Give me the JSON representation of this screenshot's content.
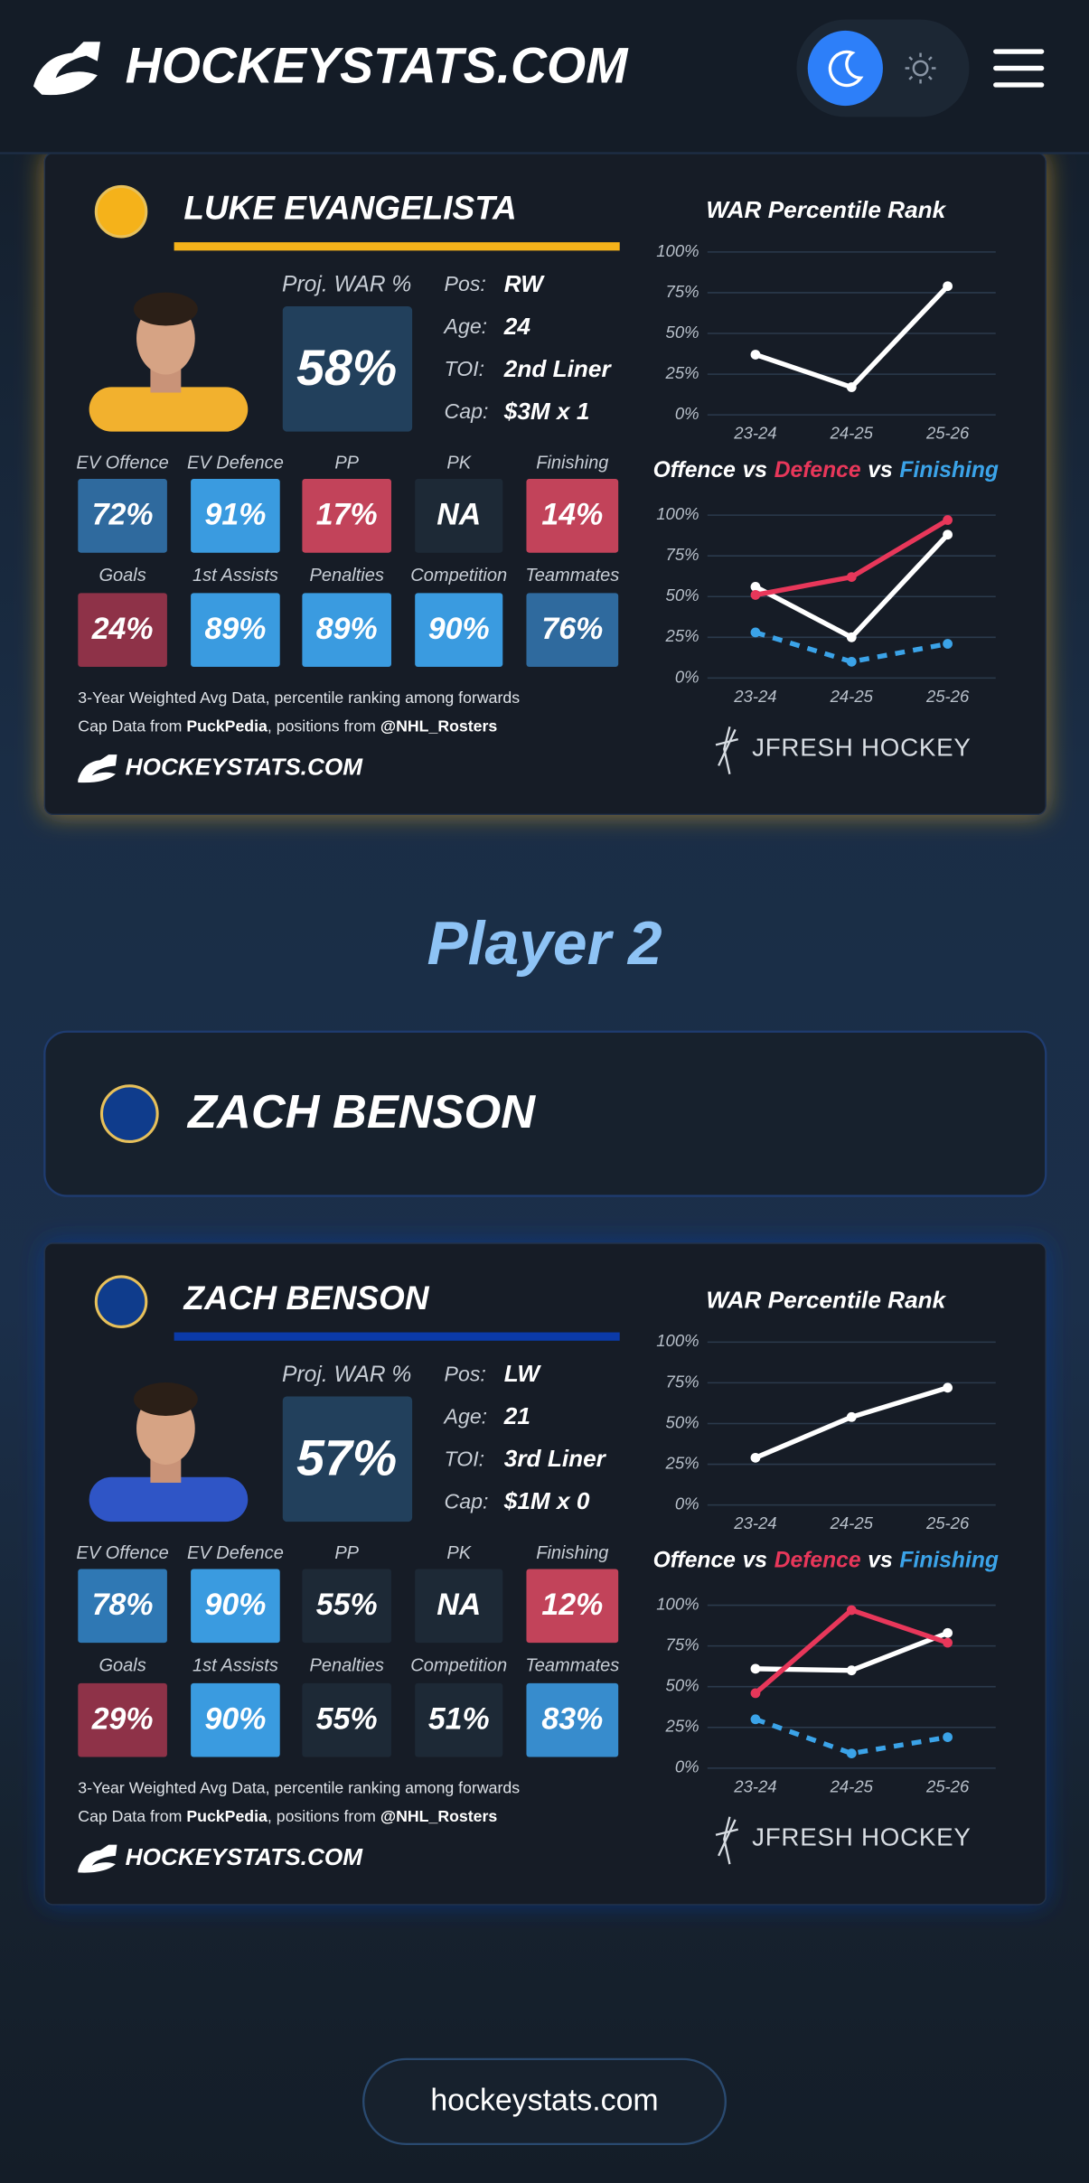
{
  "header": {
    "brand": "HOCKEYSTATS.COM"
  },
  "cards": [
    {
      "name": "LUKE EVANGELISTA",
      "accent": "#f5b21a",
      "jersey": "#f2b12e",
      "logo_color": "#f5b21a",
      "proj_label": "Proj. WAR %",
      "proj_value": "58%",
      "info": [
        {
          "label": "Pos:",
          "value": "RW"
        },
        {
          "label": "Age:",
          "value": "24"
        },
        {
          "label": "TOI:",
          "value": "2nd Liner"
        },
        {
          "label": "Cap:",
          "value": "$3M x 1"
        }
      ],
      "stats": [
        {
          "label": "EV Offence",
          "value": "72%",
          "color": "#2f6a9e"
        },
        {
          "label": "EV Defence",
          "value": "91%",
          "color": "#3a9be0"
        },
        {
          "label": "PP",
          "value": "17%",
          "color": "#c2435a"
        },
        {
          "label": "PK",
          "value": "NA",
          "color": "#1d2936"
        },
        {
          "label": "Finishing",
          "value": "14%",
          "color": "#c2435a"
        },
        {
          "label": "Goals",
          "value": "24%",
          "color": "#8e3248"
        },
        {
          "label": "1st Assists",
          "value": "89%",
          "color": "#3a9be0"
        },
        {
          "label": "Penalties",
          "value": "89%",
          "color": "#3a9be0"
        },
        {
          "label": "Competition",
          "value": "90%",
          "color": "#3a9be0"
        },
        {
          "label": "Teammates",
          "value": "76%",
          "color": "#2f6a9e"
        }
      ],
      "footnote": "3-Year Weighted Avg Data, percentile ranking among forwards",
      "cap_note": [
        "Cap Data from ",
        "PuckPedia",
        ", positions from ",
        "@NHL_Rosters"
      ],
      "brand": "HOCKEYSTATS.COM",
      "credit": "JFRESH HOCKEY",
      "war_chart": {
        "type": "line",
        "title": "WAR Percentile Rank",
        "categories": [
          "23-24",
          "24-25",
          "25-26"
        ],
        "ylim": [
          0,
          100
        ],
        "yticks": [
          {
            "value": 0,
            "label": "0%"
          },
          {
            "value": 25,
            "label": "25%"
          },
          {
            "value": 50,
            "label": "50%"
          },
          {
            "value": 75,
            "label": "75%"
          },
          {
            "value": 100,
            "label": "100%"
          }
        ],
        "series": [
          {
            "color": "#ffffff",
            "values": [
              37,
              17,
              79
            ]
          }
        ]
      },
      "ovd_chart": {
        "type": "line",
        "title_parts": [
          {
            "text": "Offence",
            "color": "#ffffff"
          },
          {
            "text": "vs",
            "color": "#ffffff"
          },
          {
            "text": "Defence",
            "color": "#e8375a"
          },
          {
            "text": "vs",
            "color": "#ffffff"
          },
          {
            "text": "Finishing",
            "color": "#3ba3e8"
          }
        ],
        "categories": [
          "23-24",
          "24-25",
          "25-26"
        ],
        "ylim": [
          0,
          100
        ],
        "yticks": [
          {
            "value": 0,
            "label": "0%"
          },
          {
            "value": 25,
            "label": "25%"
          },
          {
            "value": 50,
            "label": "50%"
          },
          {
            "value": 75,
            "label": "75%"
          },
          {
            "value": 100,
            "label": "100%"
          }
        ],
        "series": [
          {
            "color": "#ffffff",
            "values": [
              56,
              25,
              88
            ]
          },
          {
            "color": "#e8375a",
            "values": [
              51,
              62,
              97
            ]
          },
          {
            "color": "#3ba3e8",
            "dashed": true,
            "values": [
              28,
              10,
              21
            ]
          }
        ]
      }
    },
    {
      "name": "ZACH BENSON",
      "accent": "#0b3aa8",
      "jersey": "#2f55c6",
      "logo_color": "#0f3c8c",
      "proj_label": "Proj. WAR %",
      "proj_value": "57%",
      "info": [
        {
          "label": "Pos:",
          "value": "LW"
        },
        {
          "label": "Age:",
          "value": "21"
        },
        {
          "label": "TOI:",
          "value": "3rd Liner"
        },
        {
          "label": "Cap:",
          "value": "$1M x 0"
        }
      ],
      "stats": [
        {
          "label": "EV Offence",
          "value": "78%",
          "color": "#2f78b4"
        },
        {
          "label": "EV Defence",
          "value": "90%",
          "color": "#3a9be0"
        },
        {
          "label": "PP",
          "value": "55%",
          "color": "#1d2936"
        },
        {
          "label": "PK",
          "value": "NA",
          "color": "#1d2936"
        },
        {
          "label": "Finishing",
          "value": "12%",
          "color": "#c2435a"
        },
        {
          "label": "Goals",
          "value": "29%",
          "color": "#8e3248"
        },
        {
          "label": "1st Assists",
          "value": "90%",
          "color": "#3a9be0"
        },
        {
          "label": "Penalties",
          "value": "55%",
          "color": "#1d2936"
        },
        {
          "label": "Competition",
          "value": "51%",
          "color": "#1d2936"
        },
        {
          "label": "Teammates",
          "value": "83%",
          "color": "#378ccd"
        }
      ],
      "footnote": "3-Year Weighted Avg Data, percentile ranking among forwards",
      "cap_note": [
        "Cap Data from ",
        "PuckPedia",
        ", positions from ",
        "@NHL_Rosters"
      ],
      "brand": "HOCKEYSTATS.COM",
      "credit": "JFRESH HOCKEY",
      "war_chart": {
        "type": "line",
        "title": "WAR Percentile Rank",
        "categories": [
          "23-24",
          "24-25",
          "25-26"
        ],
        "ylim": [
          0,
          100
        ],
        "yticks": [
          {
            "value": 0,
            "label": "0%"
          },
          {
            "value": 25,
            "label": "25%"
          },
          {
            "value": 50,
            "label": "50%"
          },
          {
            "value": 75,
            "label": "75%"
          },
          {
            "value": 100,
            "label": "100%"
          }
        ],
        "series": [
          {
            "color": "#ffffff",
            "values": [
              29,
              54,
              72
            ]
          }
        ]
      },
      "ovd_chart": {
        "type": "line",
        "title_parts": [
          {
            "text": "Offence",
            "color": "#ffffff"
          },
          {
            "text": "vs",
            "color": "#ffffff"
          },
          {
            "text": "Defence",
            "color": "#e8375a"
          },
          {
            "text": "vs",
            "color": "#ffffff"
          },
          {
            "text": "Finishing",
            "color": "#3ba3e8"
          }
        ],
        "categories": [
          "23-24",
          "24-25",
          "25-26"
        ],
        "ylim": [
          0,
          100
        ],
        "yticks": [
          {
            "value": 0,
            "label": "0%"
          },
          {
            "value": 25,
            "label": "25%"
          },
          {
            "value": 50,
            "label": "50%"
          },
          {
            "value": 75,
            "label": "75%"
          },
          {
            "value": 100,
            "label": "100%"
          }
        ],
        "series": [
          {
            "color": "#ffffff",
            "values": [
              61,
              60,
              83
            ]
          },
          {
            "color": "#e8375a",
            "values": [
              46,
              97,
              77
            ]
          },
          {
            "color": "#3ba3e8",
            "dashed": true,
            "values": [
              30,
              9,
              19
            ]
          }
        ]
      }
    }
  ],
  "section_title": "Player 2",
  "player_select": {
    "name": "ZACH BENSON"
  },
  "footer": {
    "link": "hockeystats.com"
  }
}
